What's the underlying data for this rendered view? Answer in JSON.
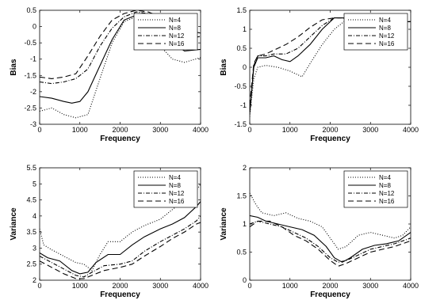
{
  "chart_data": [
    {
      "type": "line",
      "xlabel": "Frequency",
      "ylabel": "Bias",
      "xlim": [
        0,
        4000
      ],
      "ylim": [
        -3,
        0.5
      ],
      "xticks": [
        0,
        1000,
        2000,
        3000,
        4000
      ],
      "yticks": [
        -3,
        -2.5,
        -2,
        -1.5,
        -1,
        -0.5,
        0,
        0.5
      ],
      "ytick_labels": [
        "-3",
        "-2.5",
        "-2",
        "-1.5",
        "-1",
        "-0.5",
        "0",
        "0.5"
      ],
      "legend_position": "top-right",
      "series": [
        {
          "name": "N=4",
          "style": "dotted",
          "x": [
            0,
            300,
            600,
            900,
            1200,
            1500,
            1800,
            2100,
            2400,
            2700,
            3000,
            3300,
            3600,
            4000
          ],
          "y": [
            -2.6,
            -2.5,
            -2.7,
            -2.8,
            -2.7,
            -1.6,
            -0.5,
            0.15,
            0.3,
            0.05,
            -0.6,
            -1.0,
            -1.1,
            -0.95
          ]
        },
        {
          "name": "N=8",
          "style": "solid",
          "x": [
            0,
            300,
            600,
            800,
            1000,
            1200,
            1500,
            1800,
            2100,
            2400,
            2700,
            3000,
            3300,
            3600,
            4000
          ],
          "y": [
            -2.15,
            -2.2,
            -2.3,
            -2.35,
            -2.3,
            -2.0,
            -1.2,
            -0.4,
            0.2,
            0.35,
            0.2,
            -0.2,
            -0.5,
            -0.75,
            -0.7
          ]
        },
        {
          "name": "N=12",
          "style": "dashdot",
          "x": [
            0,
            300,
            600,
            900,
            1200,
            1500,
            1800,
            2100,
            2400,
            2700,
            3000,
            3300,
            3600,
            4000
          ],
          "y": [
            -1.7,
            -1.75,
            -1.7,
            -1.6,
            -1.3,
            -0.6,
            -0.05,
            0.3,
            0.45,
            0.4,
            0.15,
            -0.2,
            -0.4,
            -0.3
          ]
        },
        {
          "name": "N=16",
          "style": "dashed",
          "x": [
            0,
            300,
            600,
            900,
            1200,
            1500,
            1800,
            2100,
            2400,
            2700,
            3000,
            3300,
            3600,
            4000
          ],
          "y": [
            -1.55,
            -1.6,
            -1.55,
            -1.45,
            -0.9,
            -0.3,
            0.2,
            0.4,
            0.5,
            0.45,
            0.3,
            0.0,
            -0.1,
            -0.2
          ]
        }
      ]
    },
    {
      "type": "line",
      "xlabel": "Frequency",
      "ylabel": "Bias",
      "xlim": [
        0,
        4000
      ],
      "ylim": [
        -1.5,
        1.5
      ],
      "xticks": [
        0,
        1000,
        2000,
        3000,
        4000
      ],
      "yticks": [
        -1.5,
        -1,
        -0.5,
        0,
        0.5,
        1,
        1.5
      ],
      "ytick_labels": [
        "-1.5",
        "-1",
        "-0.5",
        "0",
        "0.5",
        "1",
        "1.5"
      ],
      "legend_position": "top-right",
      "series": [
        {
          "name": "N=4",
          "style": "dotted",
          "x": [
            0,
            100,
            200,
            400,
            700,
            1000,
            1200,
            1300,
            1500,
            1800,
            2100,
            2400,
            2700,
            3000,
            3300,
            3600,
            4000
          ],
          "y": [
            -1.3,
            -0.3,
            0.0,
            0.05,
            0.0,
            -0.1,
            -0.2,
            -0.25,
            0.1,
            0.6,
            1.0,
            1.25,
            1.3,
            1.3,
            1.25,
            1.2,
            1.2
          ]
        },
        {
          "name": "N=8",
          "style": "solid",
          "x": [
            0,
            100,
            200,
            400,
            600,
            800,
            1000,
            1200,
            1500,
            1800,
            2100,
            2300,
            2600,
            3000,
            3400,
            3700,
            4000
          ],
          "y": [
            -1.2,
            0.0,
            0.25,
            0.25,
            0.3,
            0.2,
            0.15,
            0.3,
            0.6,
            1.0,
            1.3,
            1.3,
            1.25,
            1.2,
            1.2,
            1.2,
            1.2
          ]
        },
        {
          "name": "N=12",
          "style": "dashdot",
          "x": [
            0,
            100,
            200,
            400,
            600,
            900,
            1200,
            1500,
            1800,
            2100,
            2400,
            2700,
            3000,
            3400,
            3700,
            4000
          ],
          "y": [
            -1.2,
            0.05,
            0.3,
            0.3,
            0.35,
            0.35,
            0.5,
            0.8,
            1.1,
            1.3,
            1.3,
            1.3,
            1.25,
            1.2,
            1.2,
            1.2
          ]
        },
        {
          "name": "N=16",
          "style": "dashed",
          "x": [
            0,
            100,
            200,
            400,
            600,
            900,
            1200,
            1500,
            1800,
            2100,
            2400,
            2700,
            3000,
            3400,
            3700,
            4000
          ],
          "y": [
            -1.0,
            0.1,
            0.3,
            0.35,
            0.45,
            0.6,
            0.8,
            1.05,
            1.25,
            1.3,
            1.3,
            1.3,
            1.25,
            1.25,
            1.2,
            1.2
          ]
        }
      ]
    },
    {
      "type": "line",
      "xlabel": "Frequency",
      "ylabel": "Variance",
      "xlim": [
        0,
        4000
      ],
      "ylim": [
        2,
        5.5
      ],
      "xticks": [
        0,
        1000,
        2000,
        3000,
        4000
      ],
      "yticks": [
        2,
        2.5,
        3,
        3.5,
        4,
        4.5,
        5,
        5.5
      ],
      "ytick_labels": [
        "2",
        "2.5",
        "3",
        "3.5",
        "4",
        "4.5",
        "5",
        "5.5"
      ],
      "legend_position": "top-right",
      "series": [
        {
          "name": "N=4",
          "style": "dotted",
          "x": [
            0,
            100,
            300,
            600,
            900,
            1100,
            1300,
            1500,
            1700,
            2000,
            2300,
            2600,
            3000,
            3300,
            3600,
            3800,
            4000
          ],
          "y": [
            3.6,
            3.1,
            2.95,
            2.75,
            2.55,
            2.5,
            2.3,
            2.8,
            3.2,
            3.2,
            3.5,
            3.7,
            3.9,
            4.2,
            4.5,
            4.6,
            5.0
          ]
        },
        {
          "name": "N=8",
          "style": "solid",
          "x": [
            0,
            200,
            500,
            800,
            1000,
            1200,
            1400,
            1700,
            2000,
            2300,
            2600,
            3000,
            3300,
            3600,
            3900,
            4000
          ],
          "y": [
            2.85,
            2.7,
            2.6,
            2.3,
            2.2,
            2.25,
            2.55,
            2.8,
            2.8,
            3.1,
            3.35,
            3.6,
            3.75,
            3.95,
            4.3,
            4.45
          ]
        },
        {
          "name": "N=12",
          "style": "dashdot",
          "x": [
            0,
            300,
            600,
            900,
            1100,
            1300,
            1600,
            2000,
            2300,
            2600,
            3000,
            3300,
            3600,
            3900,
            4000
          ],
          "y": [
            2.75,
            2.55,
            2.35,
            2.15,
            2.1,
            2.25,
            2.45,
            2.5,
            2.6,
            2.9,
            3.2,
            3.4,
            3.6,
            3.85,
            4.0
          ]
        },
        {
          "name": "N=16",
          "style": "dashed",
          "x": [
            0,
            300,
            600,
            900,
            1100,
            1300,
            1600,
            2000,
            2300,
            2600,
            3000,
            3300,
            3600,
            3900,
            4000
          ],
          "y": [
            2.6,
            2.4,
            2.2,
            2.05,
            2.05,
            2.15,
            2.3,
            2.4,
            2.5,
            2.75,
            3.05,
            3.3,
            3.5,
            3.75,
            3.8
          ]
        }
      ]
    },
    {
      "type": "line",
      "xlabel": "Frequency",
      "ylabel": "Variance",
      "xlim": [
        0,
        4000
      ],
      "ylim": [
        0,
        2
      ],
      "xticks": [
        0,
        1000,
        2000,
        3000,
        4000
      ],
      "yticks": [
        0,
        0.5,
        1,
        1.5,
        2
      ],
      "ytick_labels": [
        "0",
        "0.5",
        "1",
        "1.5",
        "2"
      ],
      "legend_position": "top-right",
      "series": [
        {
          "name": "N=4",
          "style": "dotted",
          "x": [
            0,
            150,
            300,
            600,
            900,
            1200,
            1500,
            1800,
            2000,
            2200,
            2400,
            2700,
            3000,
            3300,
            3600,
            3800,
            4000
          ],
          "y": [
            1.55,
            1.35,
            1.2,
            1.15,
            1.2,
            1.1,
            1.05,
            0.95,
            0.75,
            0.55,
            0.6,
            0.8,
            0.85,
            0.8,
            0.75,
            0.8,
            0.95
          ]
        },
        {
          "name": "N=8",
          "style": "solid",
          "x": [
            0,
            200,
            400,
            700,
            1000,
            1300,
            1600,
            1900,
            2100,
            2300,
            2500,
            2800,
            3100,
            3400,
            3700,
            4000
          ],
          "y": [
            1.15,
            1.12,
            1.05,
            1.0,
            0.95,
            0.9,
            0.8,
            0.6,
            0.4,
            0.32,
            0.4,
            0.55,
            0.62,
            0.65,
            0.7,
            0.85
          ]
        },
        {
          "name": "N=12",
          "style": "dashdot",
          "x": [
            0,
            200,
            500,
            800,
            1100,
            1400,
            1700,
            2000,
            2200,
            2400,
            2700,
            3000,
            3300,
            3600,
            4000
          ],
          "y": [
            1.0,
            1.05,
            1.0,
            0.95,
            0.85,
            0.75,
            0.6,
            0.4,
            0.32,
            0.35,
            0.45,
            0.55,
            0.6,
            0.65,
            0.75
          ]
        },
        {
          "name": "N=16",
          "style": "dashed",
          "x": [
            0,
            200,
            500,
            800,
            1100,
            1400,
            1700,
            2000,
            2200,
            2400,
            2700,
            3000,
            3300,
            3600,
            4000
          ],
          "y": [
            0.95,
            1.05,
            1.05,
            0.95,
            0.8,
            0.7,
            0.55,
            0.35,
            0.25,
            0.3,
            0.4,
            0.5,
            0.55,
            0.6,
            0.7
          ]
        }
      ]
    }
  ]
}
